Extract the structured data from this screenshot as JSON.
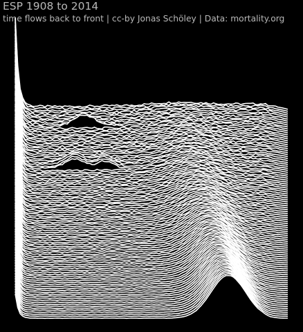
{
  "chart_data": {
    "type": "line",
    "title": "ESP 1908 to 2014",
    "subtitle": "time flows back to front | cc-by Jonas Schöley | Data: mortality.org",
    "xlabel": "",
    "ylabel": "",
    "years": [
      1908,
      2014
    ],
    "age_range": [
      0,
      110
    ],
    "grid": false,
    "legend": "none",
    "line_color": "#ffffff",
    "background": "#000000",
    "peak_events": [
      {
        "year": 1918,
        "label": ""
      },
      {
        "year": 1937,
        "label": ""
      },
      {
        "year": 1938,
        "label": ""
      }
    ]
  }
}
